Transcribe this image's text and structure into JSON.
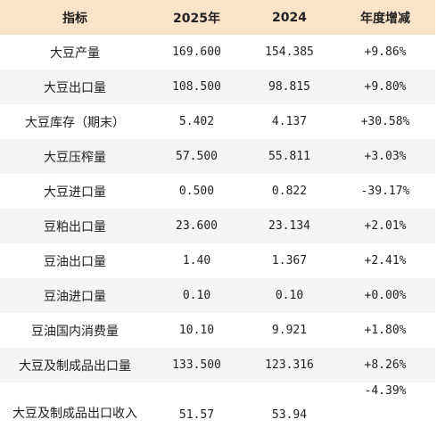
{
  "table": {
    "headers": [
      "指标",
      "2025年",
      "2024",
      "年度增减"
    ],
    "rows": [
      [
        "大豆产量",
        "169.600",
        "154.385",
        "+9.86%"
      ],
      [
        "大豆出口量",
        "108.500",
        "98.815",
        "+9.80%"
      ],
      [
        "大豆库存（期末）",
        "5.402",
        "4.137",
        "+30.58%"
      ],
      [
        "大豆压榨量",
        "57.500",
        "55.811",
        "+3.03%"
      ],
      [
        "大豆进口量",
        "0.500",
        "0.822",
        "-39.17%"
      ],
      [
        "豆粕出口量",
        "23.600",
        "23.134",
        "+2.01%"
      ],
      [
        "豆油出口量",
        "1.40",
        "1.367",
        "+2.41%"
      ],
      [
        "豆油进口量",
        "0.10",
        "0.10",
        "+0.00%"
      ],
      [
        "豆油国内消费量",
        "10.10",
        "9.921",
        "+1.80%"
      ],
      [
        "大豆及制成品出口量",
        "133.500",
        "123.316",
        "+8.26%"
      ],
      [
        "大豆及制成品出口收入",
        "51.57",
        "53.94",
        "-4.39%"
      ]
    ]
  },
  "colors": {
    "header_bg": "#fbe3c8",
    "alt_row_bg": "#f5f5f5",
    "text": "#222222"
  }
}
